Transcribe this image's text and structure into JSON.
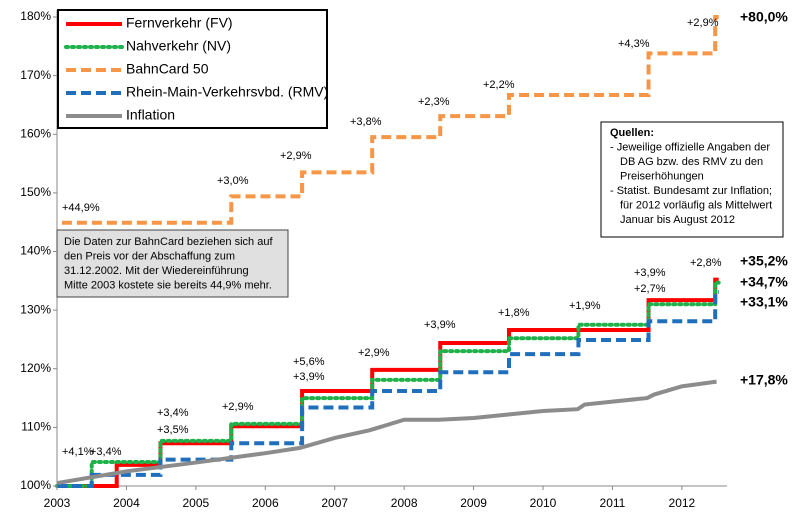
{
  "chart_data": {
    "type": "line",
    "xlim": [
      2003,
      2012.65
    ],
    "xticks": [
      2003,
      2004,
      2005,
      2006,
      2007,
      2008,
      2009,
      2010,
      2011,
      2012
    ],
    "ylim": [
      100,
      180
    ],
    "yticks": [
      {
        "value": 100,
        "label": "100%"
      },
      {
        "value": 110,
        "label": "110%"
      },
      {
        "value": 120,
        "label": "120%"
      },
      {
        "value": 130,
        "label": "130%"
      },
      {
        "value": 140,
        "label": "140%"
      },
      {
        "value": 150,
        "label": "150%"
      },
      {
        "value": 160,
        "label": "160%"
      },
      {
        "value": 170,
        "label": "170%"
      },
      {
        "value": 180,
        "label": "180%"
      }
    ],
    "grid": false,
    "series": [
      {
        "name": "Fernverkehr (FV)",
        "color": "#ff0000",
        "dash": "solid",
        "step": true,
        "x": [
          2003,
          2003.86,
          2004.49,
          2005.51,
          2006.53,
          2007.54,
          2008.52,
          2009.51,
          2011.52,
          2012.48,
          2012.53
        ],
        "values": [
          100,
          103.6,
          107.3,
          110.2,
          116.2,
          119.8,
          124.4,
          126.6,
          131.7,
          135.2,
          135.2
        ]
      },
      {
        "name": "Nahverkehr (NV)",
        "color": "#1fb14a",
        "dash": "dot",
        "step": true,
        "x": [
          2003,
          2003.5,
          2004.49,
          2005.51,
          2006.53,
          2007.54,
          2008.52,
          2009.51,
          2010.51,
          2011.52,
          2012.48,
          2012.53
        ],
        "values": [
          100,
          104.1,
          107.7,
          110.6,
          115,
          118.1,
          123,
          125.2,
          127.5,
          131,
          134.7,
          134.7
        ]
      },
      {
        "name": "BahnCard 50",
        "color": "#f79646",
        "dash": "dash",
        "step": true,
        "x": [
          2003.07,
          2005.51,
          2006.53,
          2007.54,
          2008.52,
          2009.51,
          2011.52,
          2012.48,
          2012.53
        ],
        "values": [
          144.9,
          149.4,
          153.5,
          159.5,
          163.1,
          166.7,
          173.8,
          180,
          180
        ]
      },
      {
        "name": "Rhein-Main-Verkehrsvbd. (RMV)",
        "color": "#1f6fbd",
        "dash": "dash",
        "step": true,
        "x": [
          2003,
          2003.5,
          2004.49,
          2005.51,
          2006.53,
          2007.54,
          2008.52,
          2009.51,
          2010.51,
          2011.52,
          2012.48,
          2012.53
        ],
        "values": [
          100,
          101.9,
          104.5,
          107.3,
          113.4,
          116.2,
          119.4,
          122.5,
          124.9,
          128.1,
          133.1,
          133.1
        ]
      },
      {
        "name": "Inflation",
        "color": "#8c8c8c",
        "dash": "solid",
        "step": false,
        "x": [
          2003,
          2004,
          2005,
          2006,
          2006.5,
          2007,
          2007.5,
          2008,
          2008.5,
          2009,
          2009.5,
          2010,
          2010.5,
          2010.6,
          2011,
          2011.5,
          2011.6,
          2012,
          2012.5
        ],
        "values": [
          100.5,
          102.5,
          104,
          105.6,
          106.5,
          108.2,
          109.5,
          111.3,
          111.3,
          111.6,
          112.2,
          112.8,
          113.1,
          113.9,
          114.4,
          115,
          115.6,
          117,
          117.8
        ]
      }
    ],
    "annotations": [
      "+4,1%",
      "+3,4%",
      "+3,4%",
      "+3,5%",
      "+2,9%",
      "+5,6%",
      "+3,9%",
      "+2,9%",
      "+3,9%",
      "+1,8%",
      "+1,9%",
      "+3,9%",
      "+2,7%",
      "+2,8%",
      "+44,9%",
      "+3,0%",
      "+2,9%",
      "+3,8%",
      "+2,3%",
      "+2,2%",
      "+4,3%",
      "+2,9%",
      "+80,0%",
      "+35,2%",
      "+34,7%",
      "+33,1%",
      "+17,8%"
    ],
    "sources": [
      "Quellen:",
      "- Jeweilige offizielle Angaben der",
      "DB AG bzw. des RMV zu den",
      "Preiserhöhungen",
      "- Statist. Bundesamt zur Inflation;",
      "für 2012 vorläufig als Mittelwert",
      "Januar bis August 2012"
    ],
    "bahncard_note": [
      "Die Daten zur BahnCard beziehen sich auf",
      "den Preis vor der Abschaffung zum",
      "31.12.2002. Mit der Wiedereinführung",
      "Mitte 2003 kostete sie bereits 44,9% mehr."
    ]
  }
}
